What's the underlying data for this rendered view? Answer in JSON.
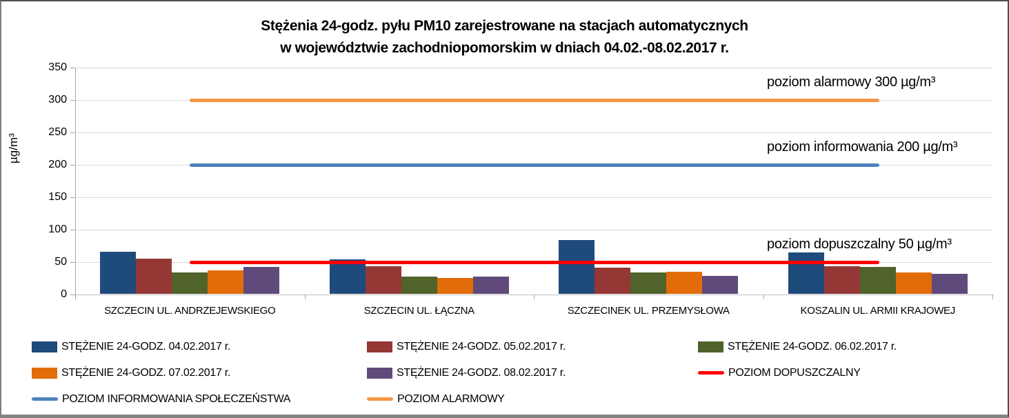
{
  "title": {
    "line1": "Stężenia 24-godz. pyłu PM10 zarejestrowane na stacjach automatycznych",
    "line2": "w województwie zachodniopomorskim w dniach 04.02.-08.02.2017 r."
  },
  "y_axis": {
    "label": "µg/m³",
    "ticks": [
      0,
      50,
      100,
      150,
      200,
      250,
      300,
      350
    ]
  },
  "chart_data": {
    "type": "bar",
    "title": "Stężenia 24-godz. pyłu PM10 zarejestrowane na stacjach automatycznych w województwie zachodniopomorskim w dniach 04.02.-08.02.2017 r.",
    "ylabel": "µg/m³",
    "ylim": [
      0,
      350
    ],
    "y_ticks": [
      0,
      50,
      100,
      150,
      200,
      250,
      300,
      350
    ],
    "grid": true,
    "legend_position": "bottom",
    "categories": [
      "SZCZECIN UL. ANDRZEJEWSKIEGO",
      "SZCZECIN UL. ŁĄCZNA",
      "SZCZECINEK UL. PRZEMYSŁOWA",
      "KOSZALIN UL. ARMII KRAJOWEJ"
    ],
    "series": [
      {
        "name": "STĘŻENIE 24-GODZ. 04.02.2017 r.",
        "color": "#1F4A7C",
        "values": [
          65,
          53,
          83,
          64
        ]
      },
      {
        "name": "STĘŻENIE 24-GODZ. 05.02.2017 r.",
        "color": "#953735",
        "values": [
          54,
          43,
          40,
          43
        ]
      },
      {
        "name": "STĘŻENIE 24-GODZ. 06.02.2017 r.",
        "color": "#4F632A",
        "values": [
          33,
          27,
          33,
          41
        ]
      },
      {
        "name": "STĘŻENIE 24-GODZ. 07.02.2017 r.",
        "color": "#E26C09",
        "values": [
          36,
          25,
          34,
          33
        ]
      },
      {
        "name": "STĘŻENIE 24-GODZ. 08.02.2017 r.",
        "color": "#604A7B",
        "values": [
          42,
          27,
          28,
          31
        ]
      }
    ],
    "reference_lines": [
      {
        "key": "alarmowy",
        "name": "POZIOM ALARMOWY",
        "value": 300,
        "color": "#F79646",
        "annotation": "poziom alarmowy 300 µg/m³"
      },
      {
        "key": "informowania",
        "name": "POZIOM INFORMOWANIA SPOŁECZEŃSTWA",
        "value": 200,
        "color": "#4F81BD",
        "annotation": "poziom informowania 200 µg/m³"
      },
      {
        "key": "dopuszczalny",
        "name": "POZIOM DOPUSZCZALNY",
        "value": 50,
        "color": "#FF0000",
        "annotation": "poziom dopuszczalny 50 µg/m³"
      }
    ]
  },
  "legend": {
    "items": [
      {
        "label": "STĘŻENIE 24-GODZ. 04.02.2017 r.",
        "type": "bar",
        "color": "#1F4A7C"
      },
      {
        "label": "STĘŻENIE 24-GODZ. 05.02.2017 r.",
        "type": "bar",
        "color": "#953735"
      },
      {
        "label": "STĘŻENIE 24-GODZ. 06.02.2017 r.",
        "type": "bar",
        "color": "#4F632A"
      },
      {
        "label": "STĘŻENIE 24-GODZ. 07.02.2017 r.",
        "type": "bar",
        "color": "#E26C09"
      },
      {
        "label": "STĘŻENIE 24-GODZ. 08.02.2017 r.",
        "type": "bar",
        "color": "#604A7B"
      },
      {
        "label": "POZIOM DOPUSZCZALNY",
        "type": "line",
        "color": "#FF0000"
      },
      {
        "label": "POZIOM INFORMOWANIA SPOŁECZEŃSTWA",
        "type": "line",
        "color": "#4F81BD"
      },
      {
        "label": "POZIOM ALARMOWY",
        "type": "line",
        "color": "#F79646"
      }
    ]
  }
}
